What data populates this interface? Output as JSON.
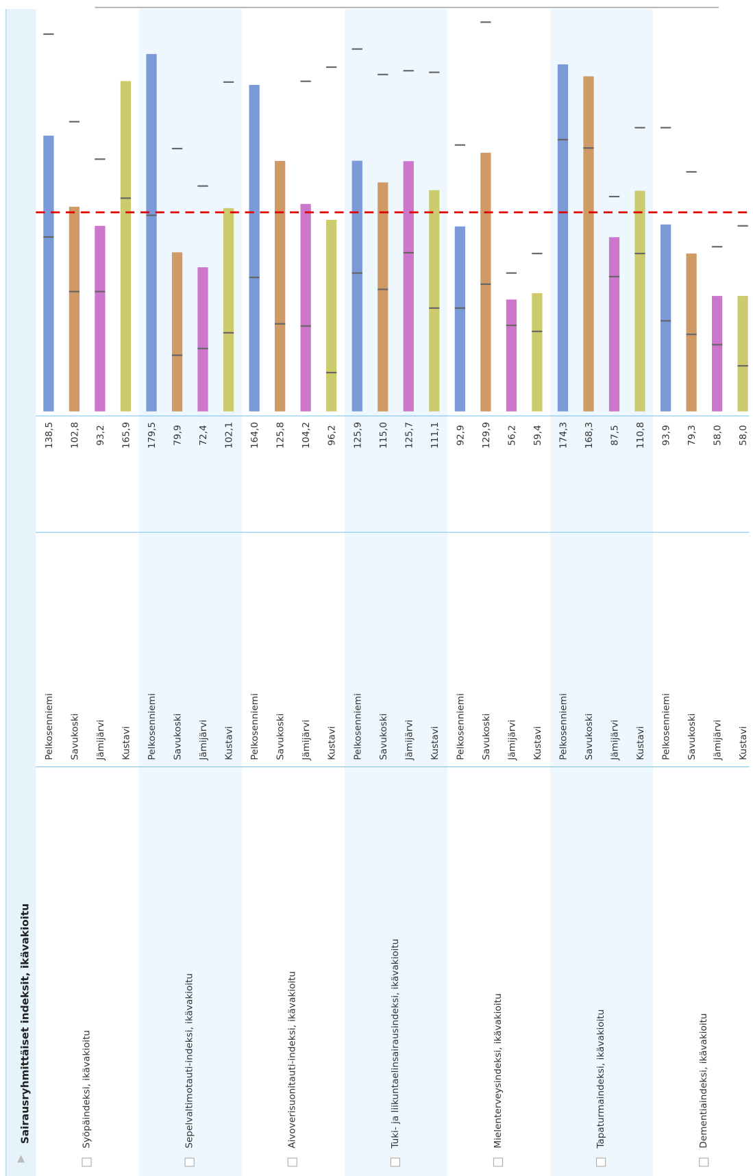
{
  "chart_data": {
    "type": "bar",
    "title": "Sairausryhmittäiset indeksit, ikävakioitu",
    "colors": [
      "#7b9bd8",
      "#cf9a65",
      "#cc77cc",
      "#cccc6e"
    ],
    "reference_line": 100,
    "reference_color": "#e00000",
    "ylim": [
      0,
      201
    ],
    "groups": [
      {
        "name": "Syöpäindeksi, ikävakioitu",
        "categories": [
          "Pelkosenniemi",
          "Savukoski",
          "Jämijärvi",
          "Kustavi"
        ],
        "values": [
          138.5,
          102.8,
          93.2,
          165.9
        ],
        "value_labels": [
          "138,5",
          "102,8",
          "93,2",
          "165,9"
        ],
        "lower": [
          87.6,
          60.2,
          60.2,
          107.1
        ],
        "upper": [
          189.5,
          145.5,
          126.7,
          null
        ]
      },
      {
        "name": "Sepelvaltimotauti-indeksi, ikävakioitu",
        "categories": [
          "Pelkosenniemi",
          "Savukoski",
          "Jämijärvi",
          "Kustavi"
        ],
        "values": [
          179.5,
          79.9,
          72.4,
          102.1
        ],
        "value_labels": [
          "179,5",
          "79,9",
          "72,4",
          "102,1"
        ],
        "lower": [
          98.5,
          28.2,
          31.6,
          39.5
        ],
        "upper": [
          null,
          132.0,
          113.2,
          165.4
        ]
      },
      {
        "name": "Aivoverisuonitauti-indeksi, ikävakioitu",
        "categories": [
          "Pelkosenniemi",
          "Savukoski",
          "Jämijärvi",
          "Kustavi"
        ],
        "values": [
          164.0,
          125.8,
          104.2,
          96.2
        ],
        "value_labels": [
          "164,0",
          "125,8",
          "104,2",
          "96,2"
        ],
        "lower": [
          67.3,
          44.0,
          42.9,
          19.5
        ],
        "upper": [
          null,
          null,
          165.8,
          172.9
        ]
      },
      {
        "name": "Tuki- ja liikuntaelinsairausindeksi, ikävakioitu",
        "categories": [
          "Pelkosenniemi",
          "Savukoski",
          "Jämijärvi",
          "Kustavi"
        ],
        "values": [
          125.9,
          115.0,
          125.7,
          111.1
        ],
        "value_labels": [
          "125,9",
          "115,0",
          "125,7",
          "111,1"
        ],
        "lower": [
          69.5,
          61.3,
          79.7,
          51.9
        ],
        "upper": [
          182.0,
          169.2,
          171.1,
          170.3
        ]
      },
      {
        "name": "Mielenterveysindeksi, ikävakioitu",
        "categories": [
          "Pelkosenniemi",
          "Savukoski",
          "Jämijärvi",
          "Kustavi"
        ],
        "values": [
          92.9,
          129.9,
          56.2,
          59.4
        ],
        "value_labels": [
          "92,9",
          "129,9",
          "56,2",
          "59,4"
        ],
        "lower": [
          51.9,
          63.9,
          43.2,
          40.2
        ],
        "upper": [
          133.8,
          195.5,
          69.5,
          79.3
        ]
      },
      {
        "name": "Tapaturmaindeksi, ikävakioitu",
        "categories": [
          "Pelkosenniemi",
          "Savukoski",
          "Jämijärvi",
          "Kustavi"
        ],
        "values": [
          174.3,
          168.3,
          87.5,
          110.8
        ],
        "value_labels": [
          "174,3",
          "168,3",
          "87,5",
          "110,8"
        ],
        "lower": [
          136.5,
          132.3,
          67.7,
          79.3
        ],
        "upper": [
          null,
          null,
          107.9,
          142.5
        ]
      },
      {
        "name": "Dementiaindeksi, ikävakioitu",
        "categories": [
          "Pelkosenniemi",
          "Savukoski",
          "Jämijärvi",
          "Kustavi"
        ],
        "values": [
          93.9,
          79.3,
          58.0,
          58.0
        ],
        "value_labels": [
          "93,9",
          "79,3",
          "58,0",
          "58,0"
        ],
        "lower": [
          45.5,
          38.7,
          33.5,
          22.9
        ],
        "upper": [
          142.5,
          120.3,
          82.7,
          93.2
        ]
      }
    ]
  }
}
